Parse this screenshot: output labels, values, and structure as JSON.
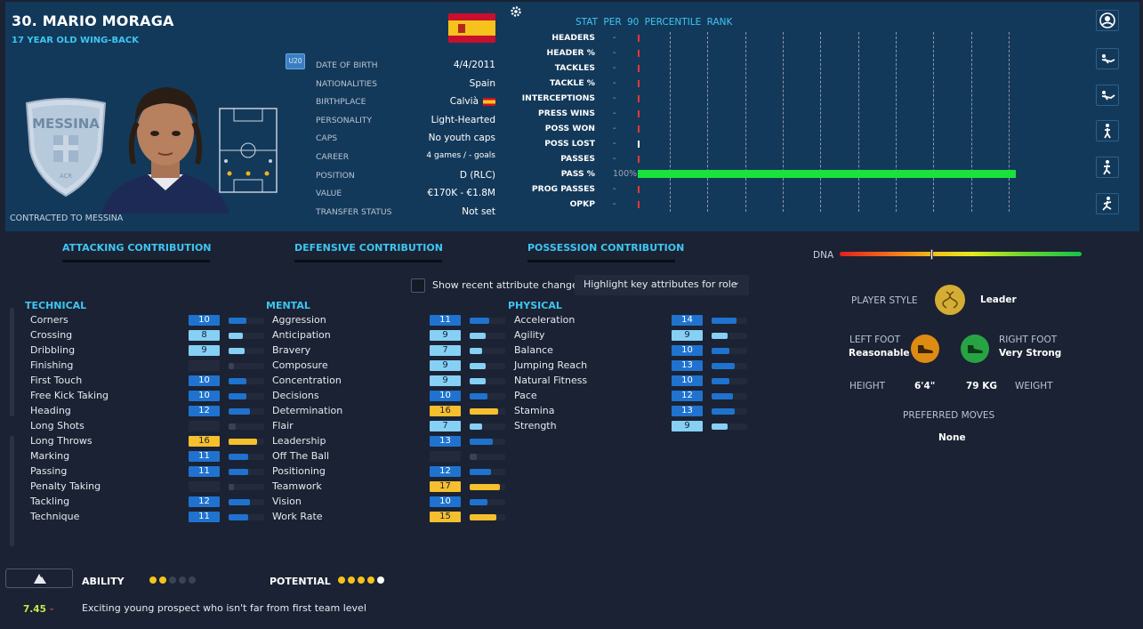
{
  "player": {
    "name": "30. MARIO MORAGA",
    "age_position": "17 YEAR OLD WING-BACK",
    "contracted": "CONTRACTED TO MESSINA",
    "badge_text": "MESSINA",
    "badge_sub": "ACR",
    "u20": "U20"
  },
  "info": [
    {
      "label": "DATE OF BIRTH",
      "value": "4/4/2011"
    },
    {
      "label": "NATIONALITIES",
      "value": "Spain"
    },
    {
      "label": "BIRTHPLACE",
      "value": "Calvià"
    },
    {
      "label": "PERSONALITY",
      "value": "Light-Hearted"
    },
    {
      "label": "CAPS",
      "value": "No youth caps"
    },
    {
      "label": "CAREER",
      "value": "4 games /    - goals"
    },
    {
      "label": "POSITION",
      "value": "D (RLC)"
    },
    {
      "label": "VALUE",
      "value": "€170K - €1.8M"
    },
    {
      "label": "TRANSFER STATUS",
      "value": "Not set"
    }
  ],
  "stats": {
    "heading": "STAT  PER 90  PERCENTILE RANK",
    "rows": [
      {
        "name": "HEADERS",
        "value": "-",
        "percentile": 0
      },
      {
        "name": "HEADER %",
        "value": "-",
        "percentile": 0
      },
      {
        "name": "TACKLES",
        "value": "-",
        "percentile": 0
      },
      {
        "name": "TACKLE %",
        "value": "-",
        "percentile": 0
      },
      {
        "name": "INTERCEPTIONS",
        "value": "-",
        "percentile": 0
      },
      {
        "name": "PRESS WINS",
        "value": "-",
        "percentile": 0
      },
      {
        "name": "POSS WON",
        "value": "-",
        "percentile": 0
      },
      {
        "name": "POSS LOST",
        "value": "-",
        "percentile": 0
      },
      {
        "name": "PASSES",
        "value": "-",
        "percentile": 0
      },
      {
        "name": "PASS %",
        "value": "100%",
        "percentile": 100
      },
      {
        "name": "PROG PASSES",
        "value": "-",
        "percentile": 0
      },
      {
        "name": "OPKP",
        "value": "-",
        "percentile": 0
      }
    ]
  },
  "contributions": {
    "attacking": "ATTACKING CONTRIBUTION",
    "defensive": "DEFENSIVE CONTRIBUTION",
    "possession": "POSSESSION CONTRIBUTION",
    "dna_label": "DNA",
    "dna_level": 0.38
  },
  "controls": {
    "recent_changes": "Show recent attribute changes",
    "highlight": "Highlight key attributes for role"
  },
  "technical": {
    "title": "TECHNICAL",
    "items": [
      {
        "name": "Corners",
        "value": "10",
        "n": 10
      },
      {
        "name": "Crossing",
        "value": "8",
        "n": 8
      },
      {
        "name": "Dribbling",
        "value": "9",
        "n": 9
      },
      {
        "name": "Finishing",
        "value": "",
        "n": 3
      },
      {
        "name": "First Touch",
        "value": "10",
        "n": 10
      },
      {
        "name": "Free Kick Taking",
        "value": "10",
        "n": 10
      },
      {
        "name": "Heading",
        "value": "12",
        "n": 12
      },
      {
        "name": "Long Shots",
        "value": "",
        "n": 4
      },
      {
        "name": "Long Throws",
        "value": "16",
        "n": 16
      },
      {
        "name": "Marking",
        "value": "11",
        "n": 11
      },
      {
        "name": "Passing",
        "value": "11",
        "n": 11
      },
      {
        "name": "Penalty Taking",
        "value": "",
        "n": 3
      },
      {
        "name": "Tackling",
        "value": "12",
        "n": 12
      },
      {
        "name": "Technique",
        "value": "11",
        "n": 11
      }
    ]
  },
  "mental": {
    "title": "MENTAL",
    "items": [
      {
        "name": "Aggression",
        "value": "11",
        "n": 11
      },
      {
        "name": "Anticipation",
        "value": "9",
        "n": 9
      },
      {
        "name": "Bravery",
        "value": "7",
        "n": 7
      },
      {
        "name": "Composure",
        "value": "9",
        "n": 9
      },
      {
        "name": "Concentration",
        "value": "9",
        "n": 9
      },
      {
        "name": "Decisions",
        "value": "10",
        "n": 10
      },
      {
        "name": "Determination",
        "value": "16",
        "n": 16
      },
      {
        "name": "Flair",
        "value": "7",
        "n": 7
      },
      {
        "name": "Leadership",
        "value": "13",
        "n": 13
      },
      {
        "name": "Off The Ball",
        "value": "",
        "n": 4
      },
      {
        "name": "Positioning",
        "value": "12",
        "n": 12
      },
      {
        "name": "Teamwork",
        "value": "17",
        "n": 17
      },
      {
        "name": "Vision",
        "value": "10",
        "n": 10
      },
      {
        "name": "Work Rate",
        "value": "15",
        "n": 15
      }
    ]
  },
  "physical": {
    "title": "PHYSICAL",
    "items": [
      {
        "name": "Acceleration",
        "value": "14",
        "n": 14
      },
      {
        "name": "Agility",
        "value": "9",
        "n": 9
      },
      {
        "name": "Balance",
        "value": "10",
        "n": 10
      },
      {
        "name": "Jumping Reach",
        "value": "13",
        "n": 13
      },
      {
        "name": "Natural Fitness",
        "value": "10",
        "n": 10
      },
      {
        "name": "Pace",
        "value": "12",
        "n": 12
      },
      {
        "name": "Stamina",
        "value": "13",
        "n": 13
      },
      {
        "name": "Strength",
        "value": "9",
        "n": 9
      }
    ]
  },
  "profile": {
    "style_label": "PLAYER STYLE",
    "style_value": "Leader",
    "left_foot_label": "LEFT FOOT",
    "left_foot_value": "Reasonable",
    "right_foot_label": "RIGHT FOOT",
    "right_foot_value": "Very Strong",
    "height_label": "HEIGHT",
    "height_value": "6'4\"",
    "weight_value": "79 KG",
    "weight_label": "WEIGHT",
    "moves_label": "PREFERRED MOVES",
    "moves_value": "None"
  },
  "footer": {
    "ability_label": "ABILITY",
    "ability_stars": 2,
    "potential_label": "POTENTIAL",
    "potential_stars": 4,
    "potential_max": 5,
    "rating": "7.45",
    "description": "Exciting young prospect who isn't far from first team level"
  },
  "colors": {
    "accent": "#3dc6f2",
    "attr_dark": "#1f73cf",
    "attr_light": "#86d0f5",
    "attr_gold": "#f6bf2e",
    "pass_bar": "#19e33a"
  }
}
